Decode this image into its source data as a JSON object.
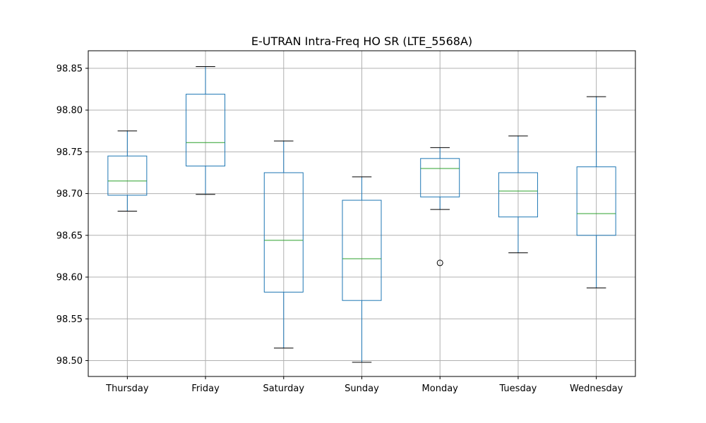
{
  "chart_data": {
    "type": "box",
    "title": "E-UTRAN Intra-Freq HO SR (LTE_5568A)",
    "xlabel": "",
    "ylabel": "",
    "ylim": [
      98.481,
      98.871
    ],
    "yticks": [
      "98.50",
      "98.55",
      "98.60",
      "98.65",
      "98.70",
      "98.75",
      "98.80",
      "98.85"
    ],
    "grid": true,
    "legend": "none",
    "categories": [
      "Thursday",
      "Friday",
      "Saturday",
      "Sunday",
      "Monday",
      "Tuesday",
      "Wednesday"
    ],
    "boxes": [
      {
        "label": "Thursday",
        "whisker_low": 98.679,
        "q1": 98.698,
        "median": 98.715,
        "q3": 98.745,
        "whisker_high": 98.775,
        "outliers": []
      },
      {
        "label": "Friday",
        "whisker_low": 98.699,
        "q1": 98.733,
        "median": 98.761,
        "q3": 98.819,
        "whisker_high": 98.852,
        "outliers": []
      },
      {
        "label": "Saturday",
        "whisker_low": 98.515,
        "q1": 98.582,
        "median": 98.644,
        "q3": 98.725,
        "whisker_high": 98.763,
        "outliers": []
      },
      {
        "label": "Sunday",
        "whisker_low": 98.498,
        "q1": 98.572,
        "median": 98.622,
        "q3": 98.692,
        "whisker_high": 98.72,
        "outliers": []
      },
      {
        "label": "Monday",
        "whisker_low": 98.681,
        "q1": 98.696,
        "median": 98.73,
        "q3": 98.742,
        "whisker_high": 98.755,
        "outliers": [
          98.617
        ]
      },
      {
        "label": "Tuesday",
        "whisker_low": 98.629,
        "q1": 98.672,
        "median": 98.703,
        "q3": 98.725,
        "whisker_high": 98.769,
        "outliers": []
      },
      {
        "label": "Wednesday",
        "whisker_low": 98.587,
        "q1": 98.65,
        "median": 98.676,
        "q3": 98.732,
        "whisker_high": 98.816,
        "outliers": []
      }
    ],
    "colors": {
      "box": "#1f77b4",
      "median": "#2ca02c",
      "cap": "#000000",
      "grid": "#b0b0b0",
      "axes": "#000000"
    }
  }
}
